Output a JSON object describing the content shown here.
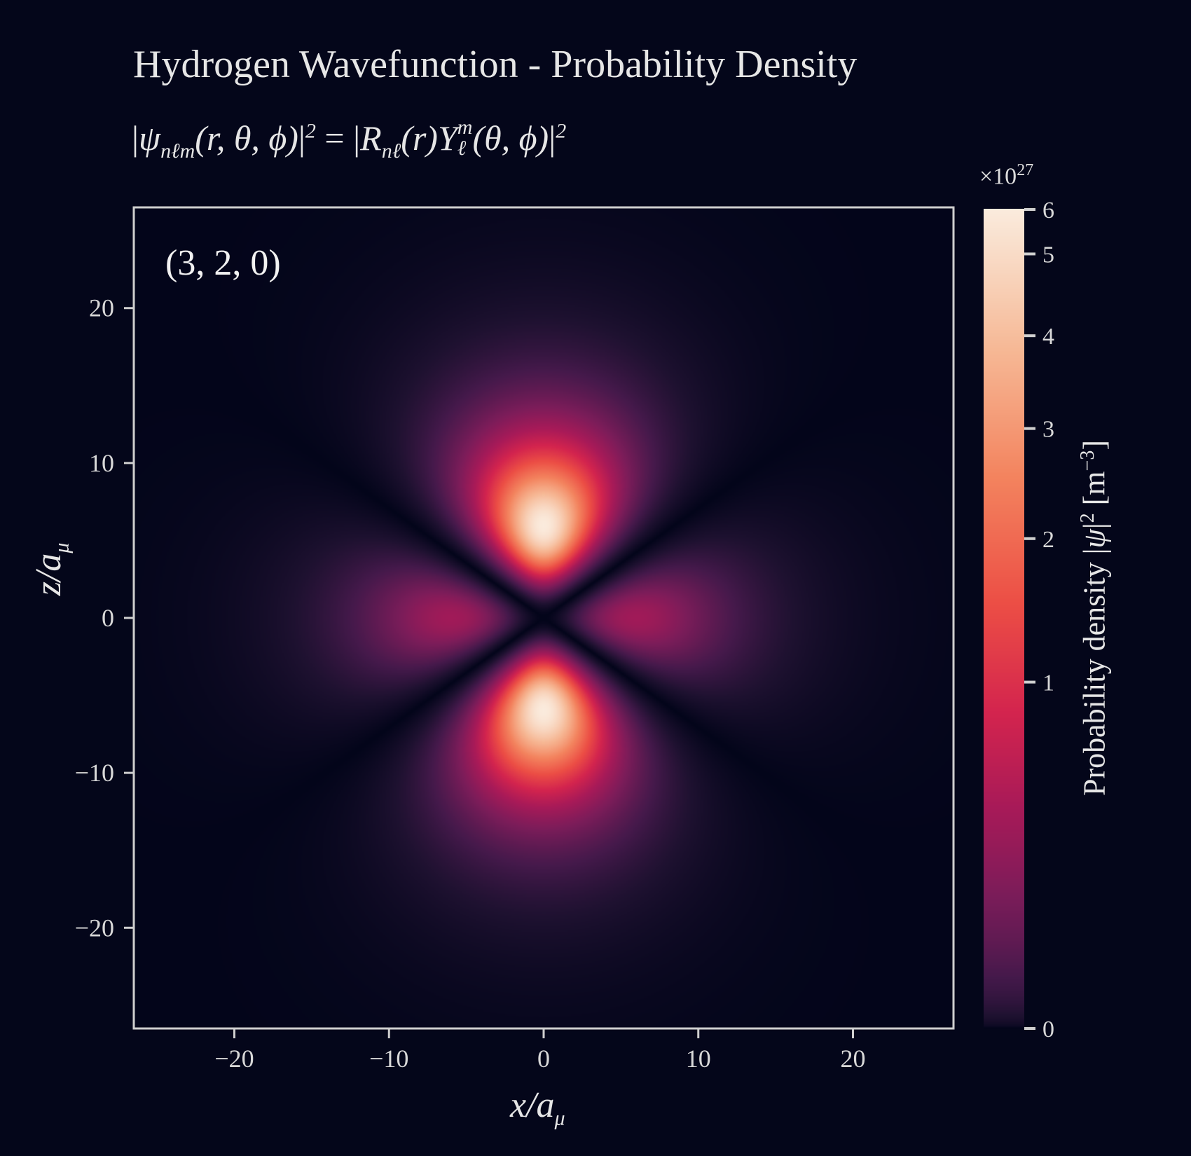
{
  "chart_data": {
    "type": "heatmap",
    "title": "Hydrogen Wavefunction - Probability Density",
    "subtitle": {
      "lhs_var": "ψ",
      "lhs_sub": "nℓm",
      "args": "(r, θ, ϕ)",
      "exp": "2",
      "radial_var": "R",
      "radial_sub": "nℓ",
      "radial_arg": "(r)",
      "angular_var": "Y",
      "angular_sup": "m",
      "angular_sub": "ℓ",
      "angular_args": "(θ, ϕ)"
    },
    "quantum_numbers": [
      3,
      2,
      0
    ],
    "annotation": "(3, 2, 0)",
    "xlabel": "x/a",
    "xlabel_sub": "μ",
    "ylabel": "z/a",
    "ylabel_sub": "μ",
    "xlim": [
      -26.5,
      26.5
    ],
    "ylim": [
      -26.5,
      26.5
    ],
    "xticks": [
      -20,
      -10,
      0,
      10,
      20
    ],
    "xtick_labels": [
      "−20",
      "−10",
      "0",
      "10",
      "20"
    ],
    "yticks": [
      20,
      10,
      0,
      -10,
      -20
    ],
    "ytick_labels": [
      "20",
      "10",
      "0",
      "−10",
      "−20"
    ],
    "colorbar": {
      "label": "Probability density",
      "label_symbol": "ψ",
      "label_unit": "[m",
      "label_unit_exp": "−3",
      "label_unit_close": "]",
      "multiplier_base": "×10",
      "multiplier_exp": "27",
      "vmin": 0,
      "vmax": 5.6,
      "ticks": [
        0,
        1,
        2,
        3,
        4,
        5,
        6
      ],
      "tick_labels": [
        "0",
        "1",
        "2",
        "3",
        "4",
        "5",
        "6"
      ],
      "scale": "power-0.5",
      "colormap": "rocket"
    },
    "peak_density": 5.6,
    "grid": false
  },
  "colors": {
    "background": "#04061a",
    "frame": "#cfcfcf",
    "text": "#e6e6e6"
  }
}
